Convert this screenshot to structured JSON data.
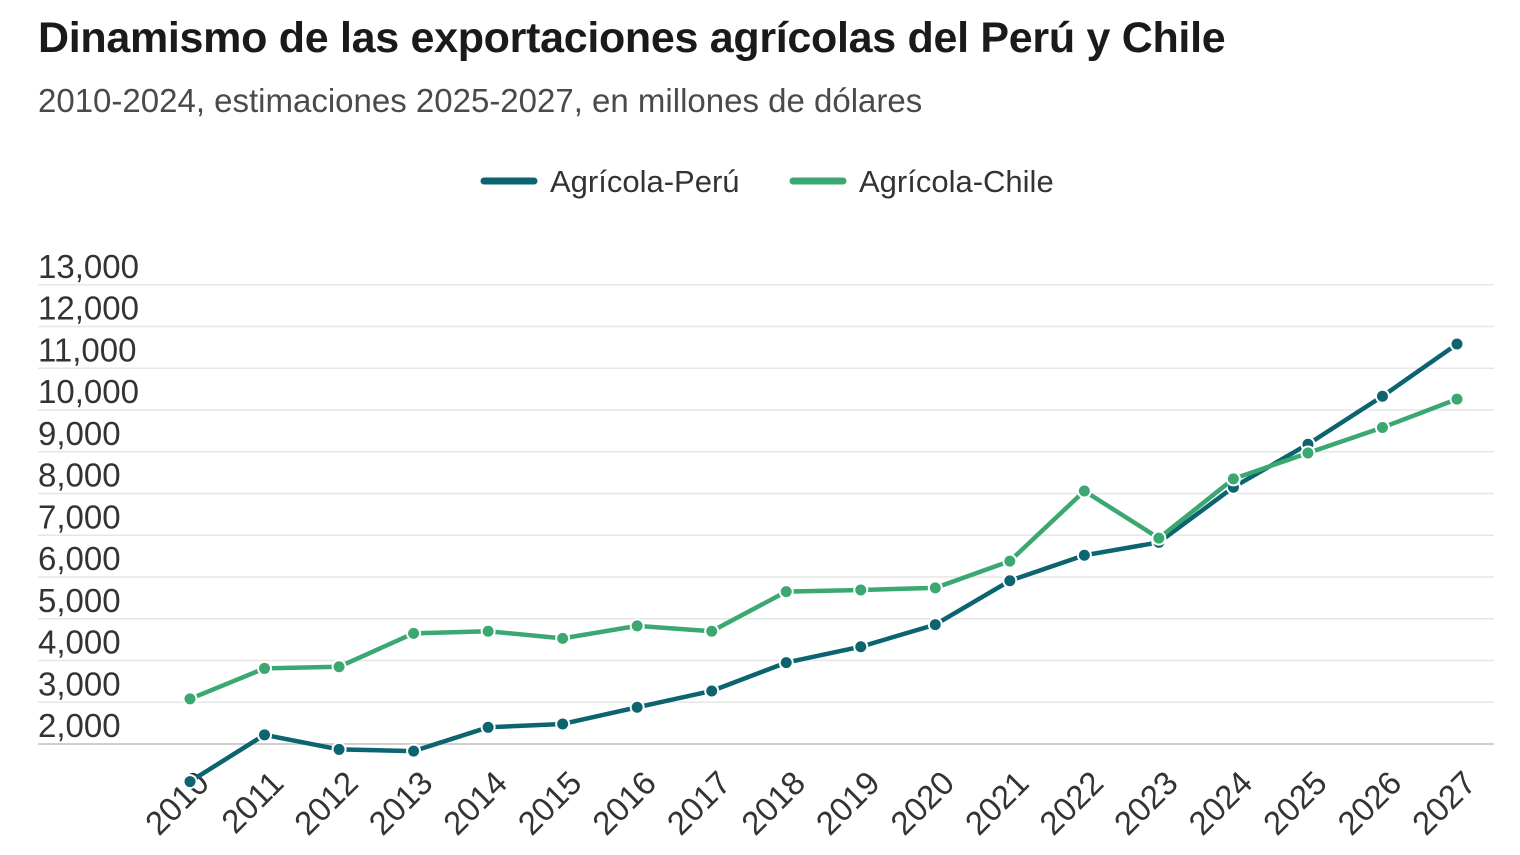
{
  "header": {
    "title": "Dinamismo de las exportaciones agrícolas del Perú y Chile",
    "subtitle": "2010-2024, estimaciones 2025-2027, en millones de dólares"
  },
  "chart_data": {
    "type": "line",
    "title": "Dinamismo de las exportaciones agrícolas del Perú y Chile",
    "subtitle": "2010-2024, estimaciones 2025-2027, en millones de dólares",
    "xlabel": "",
    "ylabel": "",
    "categories": [
      "2010",
      "2011",
      "2012",
      "2013",
      "2014",
      "2015",
      "2016",
      "2017",
      "2018",
      "2019",
      "2020",
      "2021",
      "2022",
      "2023",
      "2024",
      "2025",
      "2026",
      "2027"
    ],
    "series": [
      {
        "name": "Agrícola-Perú",
        "color": "#0b6470",
        "values": [
          1100,
          2220,
          1870,
          1830,
          2400,
          2480,
          2880,
          3270,
          3950,
          4330,
          4860,
          5910,
          6520,
          6830,
          8150,
          9180,
          10330,
          11580
        ]
      },
      {
        "name": "Agrícola-Chile",
        "color": "#3aa870",
        "values": [
          3080,
          3810,
          3850,
          4650,
          4700,
          4530,
          4830,
          4700,
          5650,
          5690,
          5740,
          6380,
          8060,
          6930,
          8350,
          8970,
          9580,
          10260
        ]
      }
    ],
    "ylim": [
      1000,
      13000
    ],
    "yticks": [
      2000,
      3000,
      4000,
      5000,
      6000,
      7000,
      8000,
      9000,
      10000,
      11000,
      12000,
      13000
    ],
    "ytick_labels": [
      "2,000",
      "3,000",
      "4,000",
      "5,000",
      "6,000",
      "7,000",
      "8,000",
      "9,000",
      "10,000",
      "11,000",
      "12,000",
      "13,000"
    ],
    "grid": true,
    "legend_position": "top-center"
  }
}
